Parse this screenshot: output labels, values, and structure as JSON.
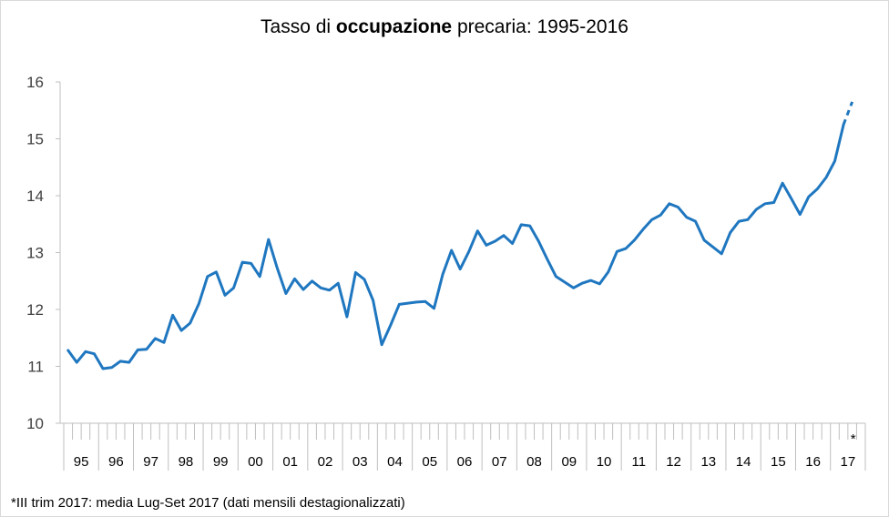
{
  "chart_data": {
    "type": "line",
    "title_parts": [
      {
        "text": "Tasso di ",
        "bold": false
      },
      {
        "text": "occupazione",
        "bold": true
      },
      {
        "text": " precaria: 1995-2016",
        "bold": false
      }
    ],
    "xlabel": "",
    "ylabel": "",
    "ylim": [
      10,
      16
    ],
    "yticks": [
      "10",
      "11",
      "12",
      "13",
      "14",
      "15",
      "16"
    ],
    "grid": false,
    "x_unit": "quarter",
    "x_start": "1995 Q1",
    "year_labels": [
      "95",
      "96",
      "97",
      "98",
      "99",
      "00",
      "01",
      "02",
      "03",
      "04",
      "05",
      "06",
      "07",
      "08",
      "09",
      "10",
      "11",
      "12",
      "13",
      "14",
      "15",
      "16",
      "17"
    ],
    "star_label": "*",
    "color": "#1f77c0",
    "series": [
      {
        "values": [
          11.28,
          11.07,
          11.26,
          11.22,
          10.96,
          10.98,
          11.09,
          11.07,
          11.29,
          11.3,
          11.49,
          11.42,
          11.9,
          11.63,
          11.76,
          12.1,
          12.58,
          12.66,
          12.25,
          12.38,
          12.83,
          12.81,
          12.58,
          13.23,
          12.73,
          12.28,
          12.54,
          12.35,
          12.5,
          12.38,
          12.34,
          12.46,
          11.87,
          12.65,
          12.53,
          12.16,
          11.38,
          11.72,
          12.09,
          12.11,
          12.13,
          12.14,
          12.02,
          12.62,
          13.04,
          12.71,
          13.02,
          13.38,
          13.13,
          13.2,
          13.3,
          13.16,
          13.49,
          13.47,
          13.2,
          12.88,
          12.58,
          12.48,
          12.38,
          12.46,
          12.51,
          12.45,
          12.66,
          13.02,
          13.07,
          13.22,
          13.41,
          13.58,
          13.66,
          13.86,
          13.8,
          13.62,
          13.55,
          13.22,
          13.1,
          12.98,
          13.35,
          13.55,
          13.58,
          13.76,
          13.86,
          13.88,
          14.22,
          13.95,
          13.67,
          13.98,
          14.12,
          14.32,
          14.61,
          15.25
        ],
        "projection": [
          15.25,
          15.65
        ]
      }
    ]
  },
  "footnote": "*III trim 2017: media Lug-Set 2017 (dati mensili destagionalizzati)"
}
